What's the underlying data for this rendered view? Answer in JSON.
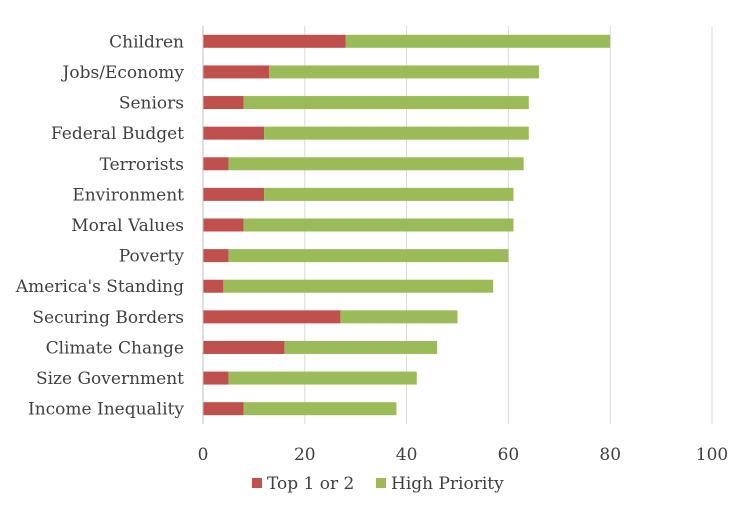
{
  "chart_data": {
    "type": "bar",
    "orientation": "horizontal",
    "stacked": true,
    "title": "",
    "xlabel": "",
    "ylabel": "",
    "xlim": [
      0,
      100
    ],
    "x_ticks": [
      0,
      20,
      40,
      60,
      80,
      100
    ],
    "grid": "vertical",
    "legend_position": "bottom",
    "categories": [
      "Children",
      "Jobs/Economy",
      "Seniors",
      "Federal Budget",
      "Terrorists",
      "Environment",
      "Moral Values",
      "Poverty",
      "America's Standing",
      "Securing Borders",
      "Climate Change",
      "Size Government",
      "Income Inequality"
    ],
    "series": [
      {
        "name": "Top 1 or 2",
        "color": "#c0504d",
        "values": [
          28,
          13,
          8,
          12,
          5,
          12,
          8,
          5,
          4,
          27,
          16,
          5,
          8
        ]
      },
      {
        "name": "High Priority",
        "color": "#9bbb59",
        "values": [
          52,
          53,
          56,
          52,
          58,
          49,
          53,
          55,
          53,
          23,
          30,
          37,
          30
        ]
      }
    ]
  }
}
